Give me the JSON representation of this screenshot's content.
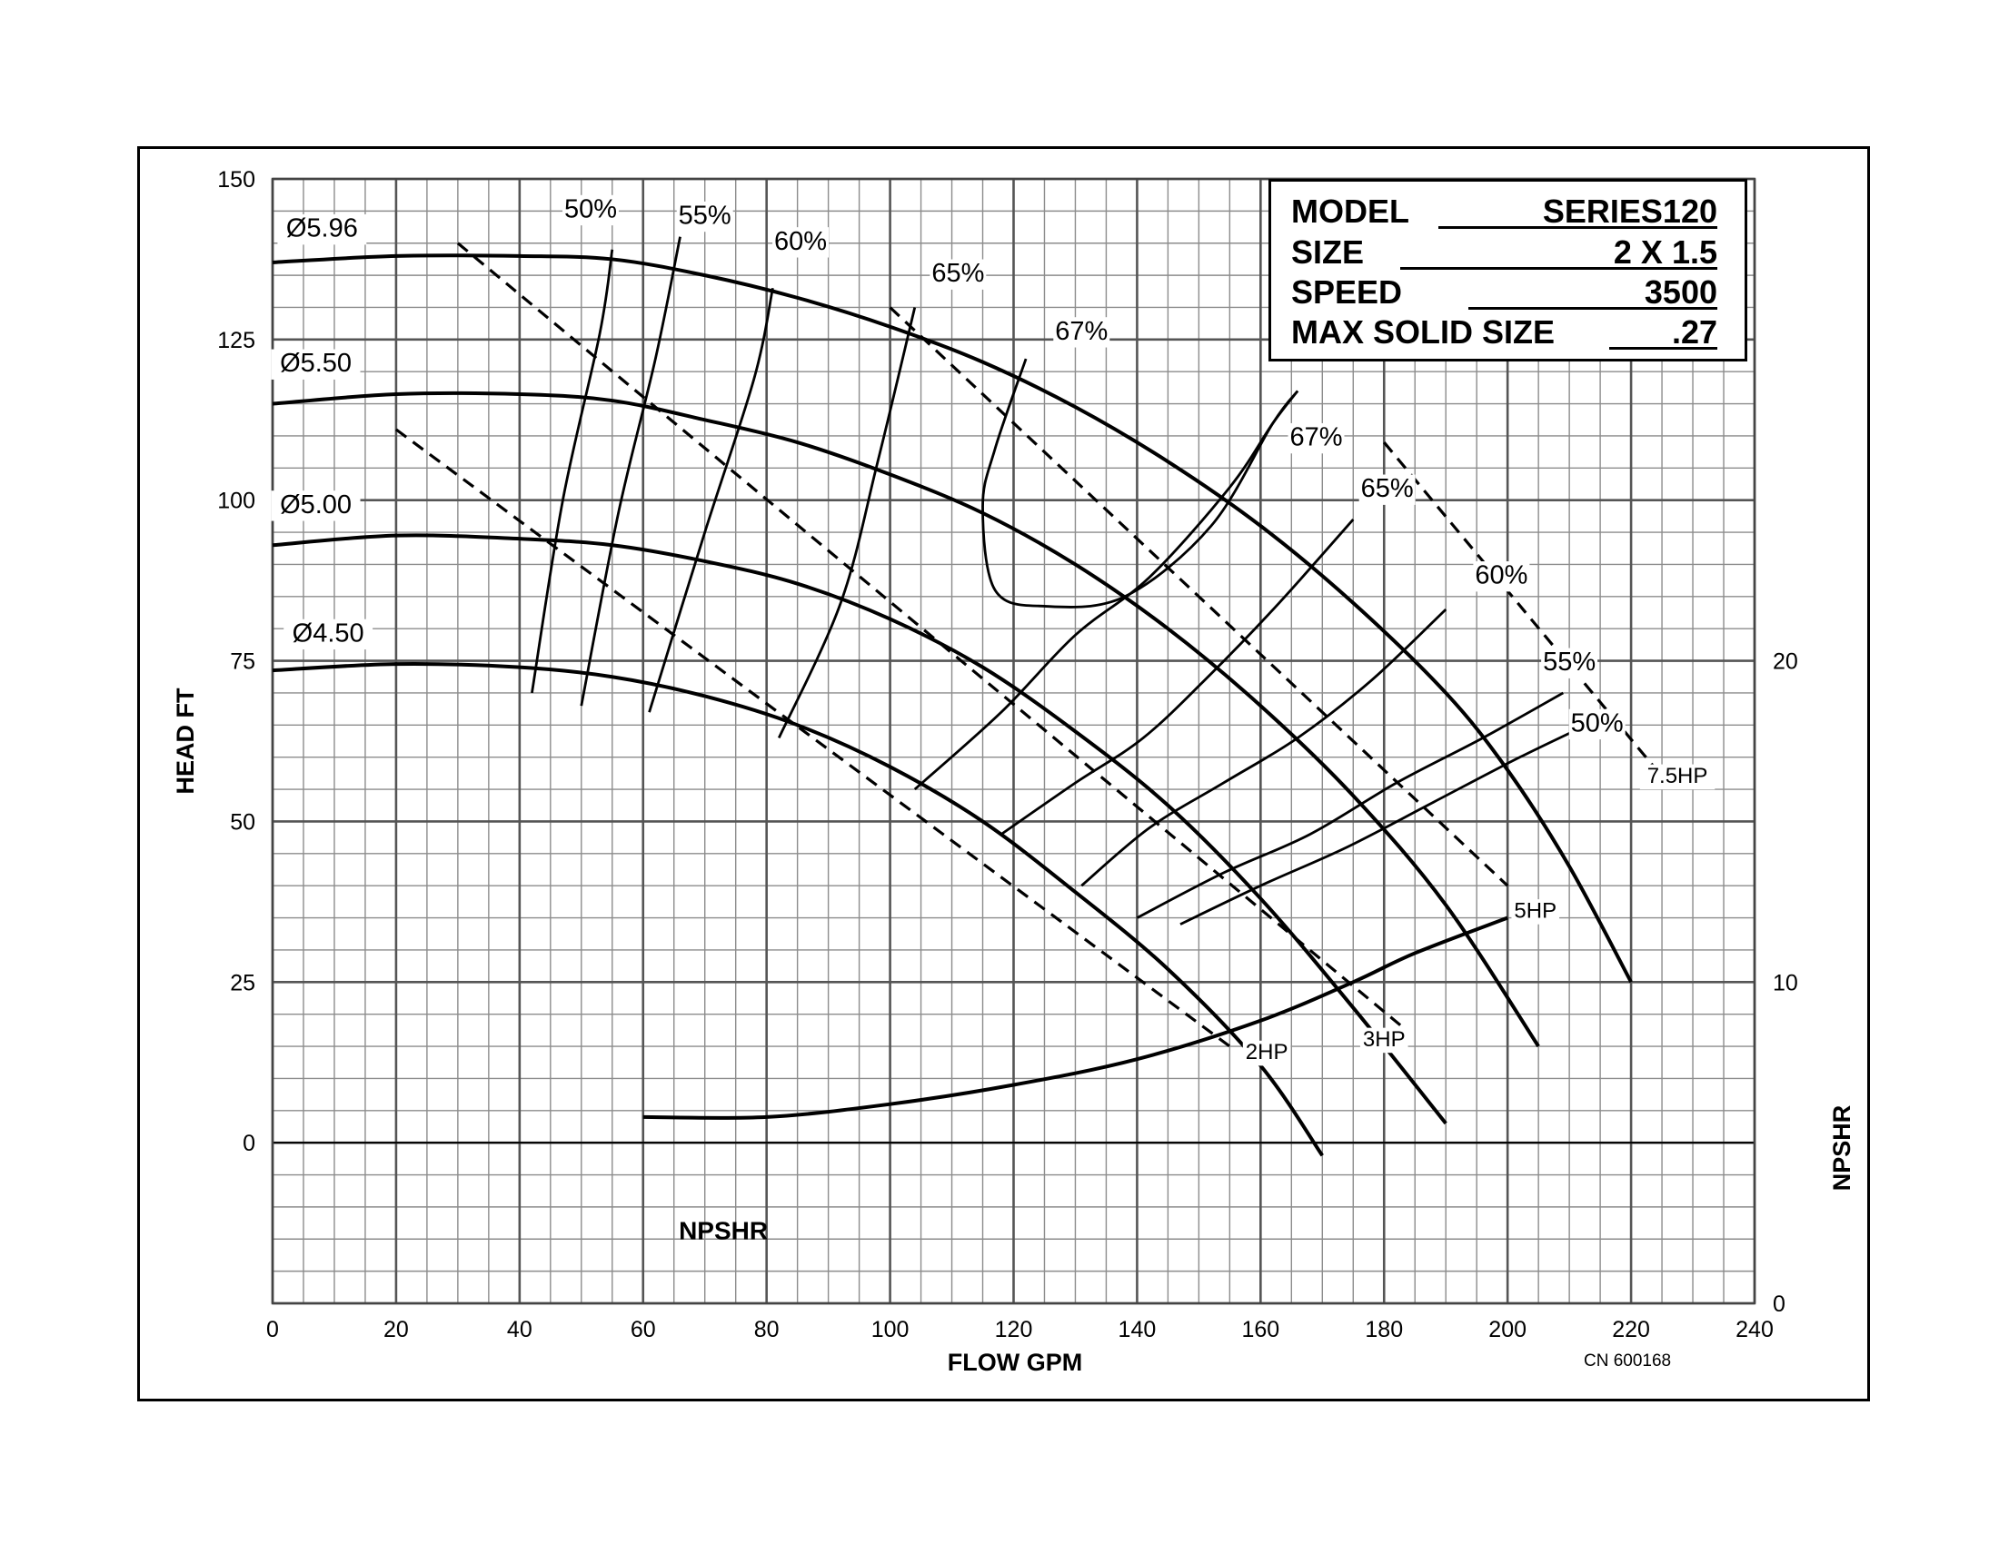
{
  "chart_data": {
    "type": "line",
    "xlabel": "FLOW GPM",
    "ylabel": "HEAD FT",
    "y2label": "NPSHR",
    "xlim": [
      0,
      240
    ],
    "ylim": [
      -25,
      150
    ],
    "y2lim": [
      0,
      35
    ],
    "grid": true,
    "x_ticks": [
      "0",
      "20",
      "40",
      "60",
      "80",
      "100",
      "120",
      "140",
      "160",
      "180",
      "200",
      "220",
      "240"
    ],
    "y_ticks": [
      "0",
      "25",
      "50",
      "75",
      "100",
      "125",
      "150"
    ],
    "y2_ticks": [
      "0",
      "10",
      "20"
    ],
    "impeller_curves": [
      {
        "name": "Ø5.96",
        "label_at": [
          8,
          141
        ],
        "x": [
          0,
          20,
          40,
          55,
          70,
          85,
          100,
          115,
          130,
          145,
          160,
          175,
          190,
          200,
          210,
          220
        ],
        "y": [
          137,
          138,
          138,
          137.5,
          135,
          131.5,
          127,
          121.5,
          114.5,
          106,
          96,
          84,
          70,
          58,
          43,
          25
        ]
      },
      {
        "name": "Ø5.50",
        "label_at": [
          7,
          120
        ],
        "x": [
          0,
          20,
          40,
          55,
          70,
          85,
          100,
          115,
          130,
          145,
          160,
          175,
          190,
          205
        ],
        "y": [
          115,
          116.5,
          116.5,
          115.5,
          112.5,
          109,
          104,
          98,
          90,
          80,
          68,
          54,
          37,
          15
        ]
      },
      {
        "name": "Ø5.00",
        "label_at": [
          7,
          98
        ],
        "x": [
          0,
          20,
          40,
          55,
          70,
          85,
          100,
          115,
          130,
          145,
          160,
          175,
          190
        ],
        "y": [
          93,
          94.5,
          94,
          93,
          90.5,
          87,
          81.5,
          74,
          64,
          52.5,
          38,
          21,
          3
        ]
      },
      {
        "name": "Ø4.50",
        "label_at": [
          9,
          78
        ],
        "x": [
          0,
          20,
          40,
          55,
          70,
          85,
          100,
          115,
          130,
          145,
          160,
          170
        ],
        "y": [
          73.5,
          74.5,
          74,
          72.5,
          69.5,
          65,
          58.5,
          50,
          39,
          27,
          12,
          -2
        ]
      }
    ],
    "efficiency_curves": [
      {
        "name": "50%",
        "label_at": [
          51.5,
          144
        ],
        "x": [
          42,
          47,
          53,
          55
        ],
        "y": [
          70,
          100,
          126,
          139
        ]
      },
      {
        "name": "55%",
        "label_at": [
          70,
          143
        ],
        "x": [
          50,
          56,
          62,
          66
        ],
        "y": [
          68,
          98,
          122,
          141
        ]
      },
      {
        "name": "60%",
        "label_at": [
          85.5,
          139
        ],
        "x": [
          61,
          70,
          78,
          81
        ],
        "y": [
          67,
          95,
          119,
          133
        ]
      },
      {
        "name": "65%",
        "label_at": [
          111,
          134
        ],
        "x": [
          82,
          92,
          98,
          104
        ],
        "y": [
          63,
          84,
          106,
          130
        ]
      },
      {
        "name": "67%",
        "label_at": [
          131,
          125
        ],
        "x": [
          122,
          117,
          115,
          117,
          125,
          138,
          152,
          162,
          166
        ],
        "y": [
          122,
          108,
          99,
          86,
          83.5,
          85,
          96,
          112,
          117
        ]
      },
      {
        "name": "67%",
        "label_at": [
          169,
          108.5
        ],
        "x": [
          166,
          162,
          155,
          142,
          130,
          118,
          104
        ],
        "y": [
          117,
          112,
          102,
          88,
          79,
          67,
          55
        ]
      },
      {
        "name": "65%",
        "label_at": [
          180.5,
          100.5
        ],
        "x": [
          175,
          163,
          152,
          141,
          130,
          118
        ],
        "y": [
          97,
          84,
          73,
          63,
          56,
          48
        ]
      },
      {
        "name": "60%",
        "label_at": [
          199,
          87
        ],
        "x": [
          190,
          178,
          166,
          154,
          142,
          131
        ],
        "y": [
          83,
          72,
          63,
          56,
          49,
          40
        ]
      },
      {
        "name": "55%",
        "label_at": [
          210,
          73.5
        ],
        "x": [
          209,
          196,
          182,
          168,
          154,
          140
        ],
        "y": [
          70,
          63,
          56,
          48,
          42,
          35
        ]
      },
      {
        "name": "50%",
        "label_at": [
          214.5,
          64
        ],
        "x": [
          215,
          202,
          188,
          174,
          160,
          147
        ],
        "y": [
          66,
          60,
          53,
          46,
          40,
          34
        ]
      }
    ],
    "power_lines": [
      {
        "name": "2HP",
        "label_at": [
          161,
          13
        ],
        "x": [
          20,
          155
        ],
        "y": [
          111,
          15
        ]
      },
      {
        "name": "3HP",
        "label_at": [
          180,
          15
        ],
        "x": [
          30,
          183
        ],
        "y": [
          140,
          18
        ]
      },
      {
        "name": "5HP",
        "label_at": [
          204.5,
          35
        ],
        "x": [
          100,
          200
        ],
        "y": [
          130,
          40
        ]
      },
      {
        "name": "7.5HP",
        "label_at": [
          227.5,
          56
        ],
        "x": [
          180,
          225
        ],
        "y": [
          109,
          57
        ]
      }
    ],
    "npshr": {
      "name": "NPSHR",
      "label_at": [
        73,
        -15
      ],
      "x": [
        60,
        80,
        100,
        120,
        140,
        160,
        175,
        185,
        200
      ],
      "y": [
        5.8,
        5.8,
        6.2,
        6.8,
        7.6,
        8.8,
        10.0,
        10.9,
        12.0
      ]
    },
    "infobox": {
      "model_label": "MODEL",
      "model": "SERIES120",
      "size_label": "SIZE",
      "size": "2 X 1.5",
      "speed_label": "SPEED",
      "speed": "3500",
      "solid_label": "MAX SOLID SIZE",
      "solid": ".27"
    },
    "reference": "CN 600168"
  }
}
